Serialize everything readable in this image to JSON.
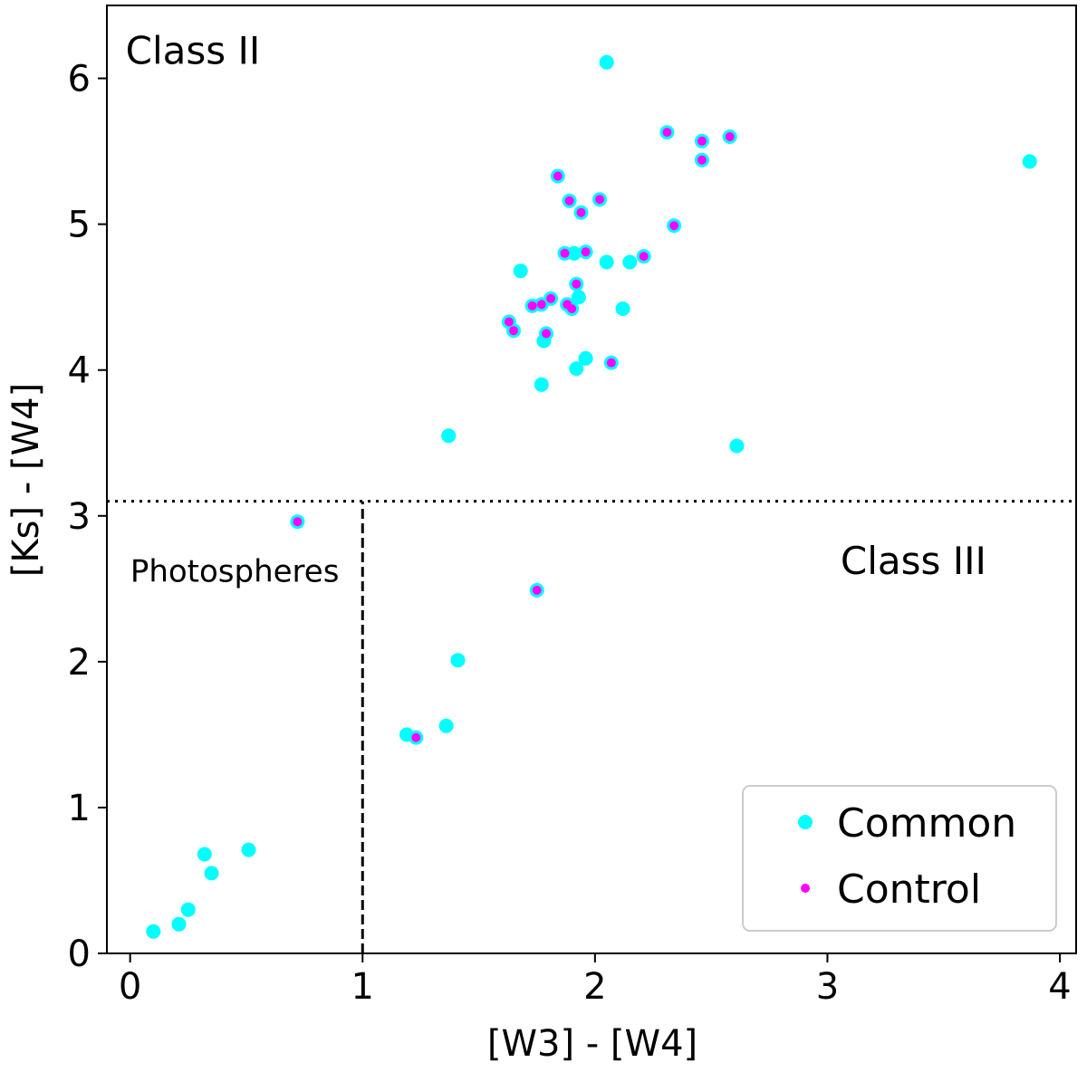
{
  "chart_data": {
    "type": "scatter",
    "title": "",
    "xlabel": "[W3] - [W4]",
    "ylabel": "[Ks] - [W4]",
    "xlim": [
      -0.1,
      4.07
    ],
    "ylim": [
      0,
      6.5
    ],
    "xticks": [
      0,
      1,
      2,
      3,
      4
    ],
    "yticks": [
      0,
      1,
      2,
      3,
      4,
      5,
      6
    ],
    "grid": false,
    "legend_position": "bottom-right",
    "boundaries": {
      "horizontal_y": 3.1,
      "vertical_x": 1.0,
      "vertical_y_range": [
        0,
        3.1
      ]
    },
    "annotations": [
      {
        "text": "Class  II",
        "x": 0.27,
        "y": 6.1
      },
      {
        "text": "Class III",
        "x": 3.37,
        "y": 2.6
      },
      {
        "text": "Photospheres",
        "x": 0.45,
        "y": 2.55
      }
    ],
    "series": [
      {
        "name": "Common",
        "color": "#00ffff",
        "points": [
          [
            0.1,
            0.15
          ],
          [
            0.21,
            0.2
          ],
          [
            0.25,
            0.3
          ],
          [
            0.32,
            0.68
          ],
          [
            0.35,
            0.55
          ],
          [
            0.51,
            0.71
          ],
          [
            0.72,
            2.96
          ],
          [
            1.19,
            1.5
          ],
          [
            1.23,
            1.48
          ],
          [
            1.36,
            1.56
          ],
          [
            1.41,
            2.01
          ],
          [
            1.37,
            3.55
          ],
          [
            1.75,
            2.49
          ],
          [
            1.63,
            4.33
          ],
          [
            1.65,
            4.27
          ],
          [
            1.68,
            4.68
          ],
          [
            1.73,
            4.44
          ],
          [
            1.77,
            4.45
          ],
          [
            1.78,
            4.2
          ],
          [
            1.79,
            4.25
          ],
          [
            1.77,
            3.9
          ],
          [
            1.81,
            4.49
          ],
          [
            1.84,
            5.33
          ],
          [
            1.87,
            4.8
          ],
          [
            1.89,
            5.16
          ],
          [
            1.88,
            4.45
          ],
          [
            1.9,
            4.42
          ],
          [
            1.91,
            4.8
          ],
          [
            1.92,
            4.59
          ],
          [
            1.93,
            4.5
          ],
          [
            1.92,
            4.01
          ],
          [
            1.94,
            5.08
          ],
          [
            1.96,
            4.81
          ],
          [
            1.96,
            4.08
          ],
          [
            2.02,
            5.17
          ],
          [
            2.05,
            4.74
          ],
          [
            2.05,
            6.11
          ],
          [
            2.07,
            4.05
          ],
          [
            2.12,
            4.42
          ],
          [
            2.15,
            4.74
          ],
          [
            2.21,
            4.78
          ],
          [
            2.31,
            5.63
          ],
          [
            2.34,
            4.99
          ],
          [
            2.46,
            5.57
          ],
          [
            2.46,
            5.44
          ],
          [
            2.58,
            5.6
          ],
          [
            2.61,
            3.48
          ],
          [
            3.87,
            5.43
          ]
        ]
      },
      {
        "name": "Control",
        "color": "#ff00ff",
        "points": [
          [
            0.72,
            2.96
          ],
          [
            1.23,
            1.48
          ],
          [
            1.75,
            2.49
          ],
          [
            1.63,
            4.33
          ],
          [
            1.65,
            4.27
          ],
          [
            1.73,
            4.44
          ],
          [
            1.77,
            4.45
          ],
          [
            1.79,
            4.25
          ],
          [
            1.81,
            4.49
          ],
          [
            1.84,
            5.33
          ],
          [
            1.87,
            4.8
          ],
          [
            1.89,
            5.16
          ],
          [
            1.88,
            4.45
          ],
          [
            1.9,
            4.42
          ],
          [
            1.92,
            4.59
          ],
          [
            1.94,
            5.08
          ],
          [
            1.96,
            4.81
          ],
          [
            2.02,
            5.17
          ],
          [
            2.07,
            4.05
          ],
          [
            2.21,
            4.78
          ],
          [
            2.31,
            5.63
          ],
          [
            2.34,
            4.99
          ],
          [
            2.46,
            5.57
          ],
          [
            2.46,
            5.44
          ],
          [
            2.58,
            5.6
          ]
        ]
      }
    ]
  }
}
